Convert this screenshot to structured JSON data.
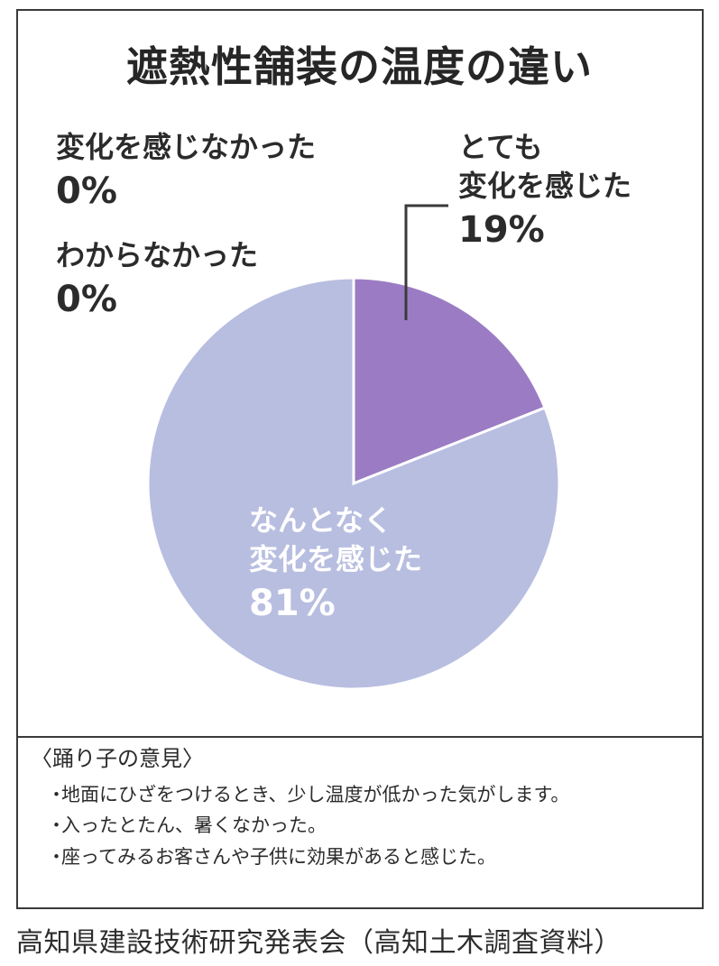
{
  "chart_data": {
    "type": "pie",
    "title": "遮熱性舗装の温度の違い",
    "slices": [
      {
        "label_lines": [
          "とても",
          "変化を感じた"
        ],
        "value": 19,
        "value_label": "19%",
        "color": "#9b7cc4"
      },
      {
        "label_lines": [
          "なんとなく",
          "変化を感じた"
        ],
        "value": 81,
        "value_label": "81%",
        "color": "#b8bee0"
      },
      {
        "label_lines": [
          "変化を感じなかった"
        ],
        "value": 0,
        "value_label": "0%"
      },
      {
        "label_lines": [
          "わからなかった"
        ],
        "value": 0,
        "value_label": "0%"
      }
    ],
    "start_angle_deg": 0,
    "direction": "clockwise",
    "leader_color": "#3a3a3a"
  },
  "opinions": {
    "heading": "〈踊り子の意見〉",
    "bullet": "・",
    "items": [
      "地面にひざをつけるとき、少し温度が低かった気がします。",
      "入ったとたん、暑くなかった。",
      "座ってみるお客さんや子供に効果があると感じた。"
    ]
  },
  "source": "高知県建設技術研究発表会（高知土木調査資料）"
}
